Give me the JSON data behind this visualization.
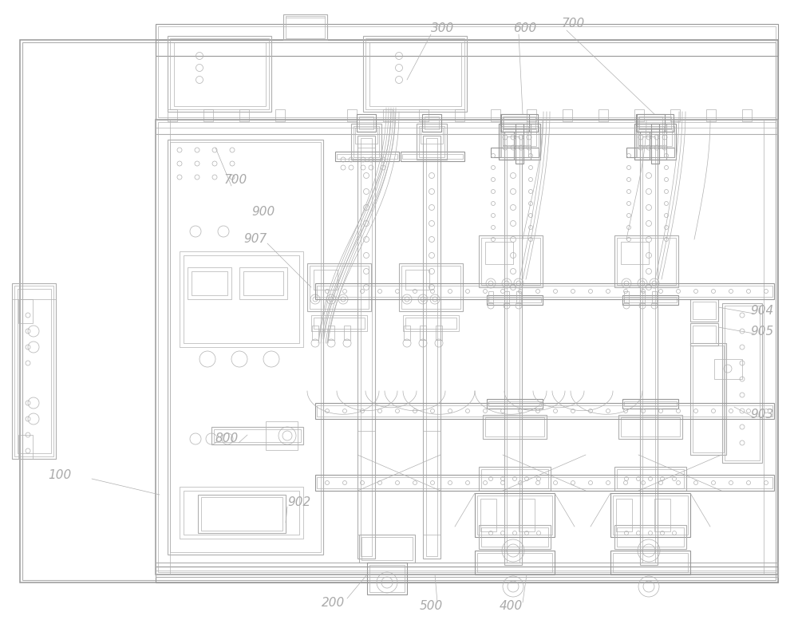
{
  "background_color": "#ffffff",
  "lc": "#c8c8c8",
  "lc2": "#b0b0b0",
  "lc3": "#989898",
  "tc": "#aaaaaa",
  "figsize": [
    10.0,
    7.77
  ],
  "dpi": 100,
  "lw1": 0.5,
  "lw2": 0.8,
  "lw3": 1.1,
  "fs": 11
}
